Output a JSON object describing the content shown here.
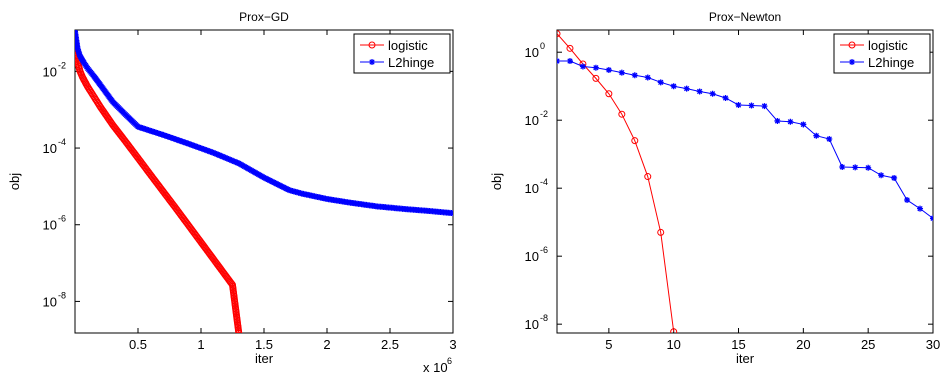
{
  "chart_data": [
    {
      "type": "line",
      "title": "Prox−GD",
      "xlabel": "iter",
      "ylabel": "obj",
      "x_multiplier_label": "x 10",
      "x_multiplier_exp": "6",
      "xscale": "linear",
      "yscale": "log",
      "xlim": [
        0,
        3000000
      ],
      "ylim": [
        1.5e-09,
        0.12
      ],
      "x_ticks": [
        500000,
        1000000,
        1500000,
        2000000,
        2500000,
        3000000
      ],
      "x_tick_labels": [
        "0.5",
        "1",
        "1.5",
        "2",
        "2.5",
        "3"
      ],
      "y_ticks": [
        1e-08,
        1e-06,
        0.0001,
        0.01
      ],
      "y_tick_exponents": [
        "-8",
        "-6",
        "-4",
        "-2"
      ],
      "grid": false,
      "legend_position": "top-right",
      "series": [
        {
          "name": "logistic",
          "color": "#ff0000",
          "marker": "circle",
          "markers_dense": true,
          "x": [
            0,
            20000,
            40000,
            60000,
            100000,
            150000,
            200000,
            300000,
            400000,
            500000,
            600000,
            800000,
            1000000,
            1200000,
            1250000,
            1300000
          ],
          "y": [
            0.045,
            0.018,
            0.01,
            0.007,
            0.004,
            0.0022,
            0.0012,
            0.0004,
            0.00015,
            5.5e-05,
            2e-05,
            2.7e-06,
            3.5e-07,
            4.5e-08,
            2.7e-08,
            1.5e-09
          ]
        },
        {
          "name": "L2hinge",
          "color": "#0000ff",
          "marker": "asterisk",
          "markers_dense": true,
          "x": [
            0,
            20000,
            40000,
            70000,
            100000,
            150000,
            200000,
            300000,
            400000,
            500000,
            700000,
            900000,
            1100000,
            1300000,
            1500000,
            1700000,
            1800000,
            2000000,
            2200000,
            2400000,
            2600000,
            2800000,
            3000000
          ],
          "y": [
            0.11,
            0.04,
            0.025,
            0.017,
            0.012,
            0.0075,
            0.0045,
            0.0016,
            0.00075,
            0.00036,
            0.00022,
            0.00013,
            7.5e-05,
            4e-05,
            1.7e-05,
            8e-06,
            6.5e-06,
            4.7e-06,
            3.7e-06,
            3e-06,
            2.6e-06,
            2.3e-06,
            2e-06
          ]
        }
      ]
    },
    {
      "type": "line",
      "title": "Prox−Newton",
      "xlabel": "iter",
      "ylabel": "obj",
      "xscale": "linear",
      "yscale": "log",
      "xlim": [
        1,
        30
      ],
      "ylim": [
        5.5e-09,
        4.5
      ],
      "x_ticks": [
        5,
        10,
        15,
        20,
        25,
        30
      ],
      "x_tick_labels": [
        "5",
        "10",
        "15",
        "20",
        "25",
        "30"
      ],
      "y_ticks": [
        1e-08,
        1e-06,
        0.0001,
        0.01,
        1
      ],
      "y_tick_exponents": [
        "-8",
        "-6",
        "-4",
        "-2",
        "0"
      ],
      "grid": false,
      "legend_position": "top-right",
      "series": [
        {
          "name": "logistic",
          "color": "#ff0000",
          "marker": "circle",
          "markers_dense": false,
          "x": [
            1,
            2,
            3,
            4,
            5,
            6,
            7,
            8,
            9,
            10
          ],
          "y": [
            3.5,
            1.3,
            0.45,
            0.17,
            0.06,
            0.015,
            0.0025,
            0.00022,
            5e-06,
            6e-09
          ]
        },
        {
          "name": "L2hinge",
          "color": "#0000ff",
          "marker": "asterisk",
          "markers_dense": false,
          "x": [
            1,
            2,
            3,
            4,
            5,
            6,
            7,
            8,
            9,
            10,
            11,
            12,
            13,
            14,
            15,
            16,
            17,
            18,
            19,
            20,
            21,
            22,
            23,
            24,
            25,
            26,
            27,
            28,
            29,
            30
          ],
          "y": [
            0.55,
            0.55,
            0.38,
            0.35,
            0.3,
            0.25,
            0.21,
            0.18,
            0.13,
            0.1,
            0.085,
            0.07,
            0.06,
            0.045,
            0.028,
            0.027,
            0.026,
            0.0095,
            0.009,
            0.0075,
            0.0035,
            0.0028,
            0.00042,
            0.00041,
            0.0004,
            0.00024,
            0.0002,
            4.5e-05,
            2.5e-05,
            1.3e-05
          ]
        }
      ]
    }
  ]
}
